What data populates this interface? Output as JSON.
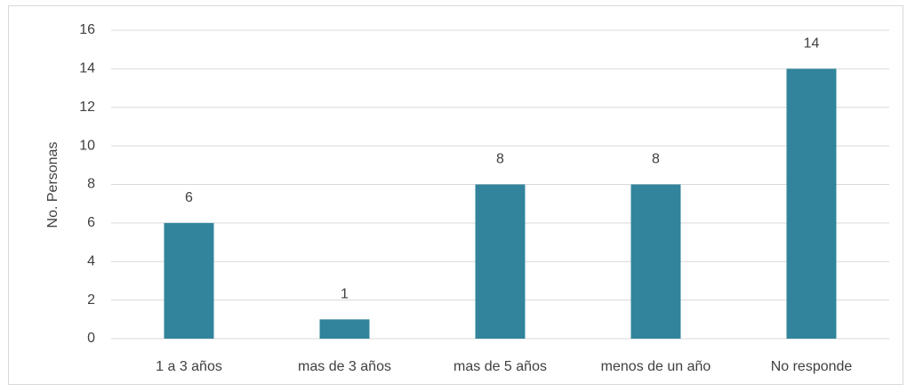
{
  "chart_data": {
    "type": "bar",
    "y_label": "No. Personas",
    "categories": [
      "1 a 3 años",
      "mas de 3 años",
      "mas de 5 años",
      "menos de un año",
      "No responde"
    ],
    "values": [
      6,
      1,
      8,
      8,
      14
    ],
    "color": "#31849b",
    "ylim": [
      0,
      16
    ],
    "yticks": [
      0,
      2,
      4,
      6,
      8,
      10,
      12,
      14,
      16
    ],
    "grid": true
  }
}
